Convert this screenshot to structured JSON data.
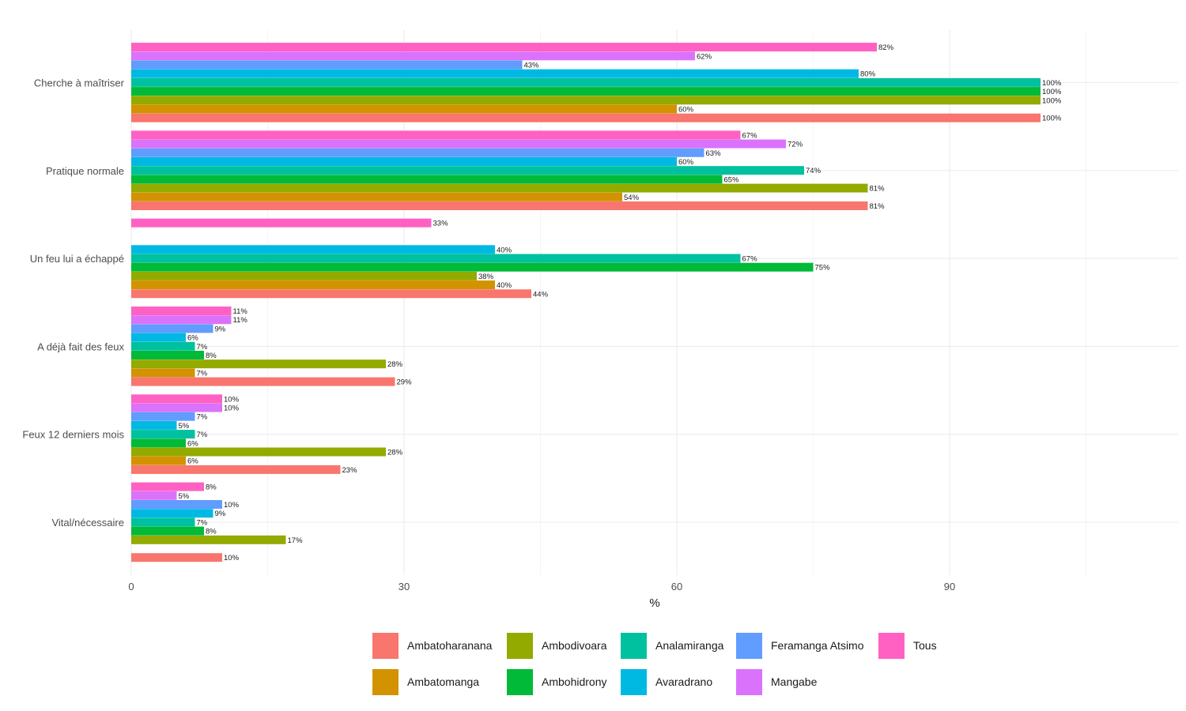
{
  "chart_data": {
    "type": "bar",
    "orientation": "horizontal",
    "title": "",
    "xlabel": "%",
    "ylabel": "",
    "xlim": [
      0,
      115
    ],
    "x_ticks": [
      0,
      30,
      60,
      90
    ],
    "grid": true,
    "legend_position": "bottom",
    "categories": [
      "Cherche à maîtriser",
      "Pratique normale",
      "Un feu lui a échappé",
      "A déjà fait des feux",
      "Feux 12 derniers mois",
      "Vital/nécessaire"
    ],
    "series": [
      {
        "name": "Ambatoharanana",
        "color": "#F8766D",
        "values": [
          100,
          81,
          44,
          29,
          23,
          10
        ]
      },
      {
        "name": "Ambatomanga",
        "color": "#D39200",
        "values": [
          60,
          54,
          40,
          7,
          6,
          null
        ]
      },
      {
        "name": "Ambodivoara",
        "color": "#93AA00",
        "values": [
          100,
          81,
          38,
          28,
          28,
          17
        ]
      },
      {
        "name": "Ambohidrony",
        "color": "#00BA38",
        "values": [
          100,
          65,
          75,
          8,
          6,
          8
        ]
      },
      {
        "name": "Analamiranga",
        "color": "#00C19F",
        "values": [
          100,
          74,
          67,
          7,
          7,
          7
        ]
      },
      {
        "name": "Avaradrano",
        "color": "#00B9E3",
        "values": [
          80,
          60,
          40,
          6,
          5,
          9
        ]
      },
      {
        "name": "Feramanga Atsimo",
        "color": "#619CFF",
        "values": [
          43,
          63,
          null,
          9,
          7,
          10
        ]
      },
      {
        "name": "Mangabe",
        "color": "#DB72FB",
        "values": [
          62,
          72,
          null,
          11,
          10,
          5
        ]
      },
      {
        "name": "Tous",
        "color": "#FF61C3",
        "values": [
          82,
          67,
          33,
          11,
          10,
          8
        ]
      }
    ],
    "value_label_suffix": "%"
  },
  "legend": {
    "items": [
      {
        "name": "Ambatoharanana",
        "color": "#F8766D"
      },
      {
        "name": "Ambatomanga",
        "color": "#D39200"
      },
      {
        "name": "Ambodivoara",
        "color": "#93AA00"
      },
      {
        "name": "Ambohidrony",
        "color": "#00BA38"
      },
      {
        "name": "Analamiranga",
        "color": "#00C19F"
      },
      {
        "name": "Avaradrano",
        "color": "#00B9E3"
      },
      {
        "name": "Feramanga Atsimo",
        "color": "#619CFF"
      },
      {
        "name": "Mangabe",
        "color": "#DB72FB"
      },
      {
        "name": "Tous",
        "color": "#FF61C3"
      }
    ]
  }
}
